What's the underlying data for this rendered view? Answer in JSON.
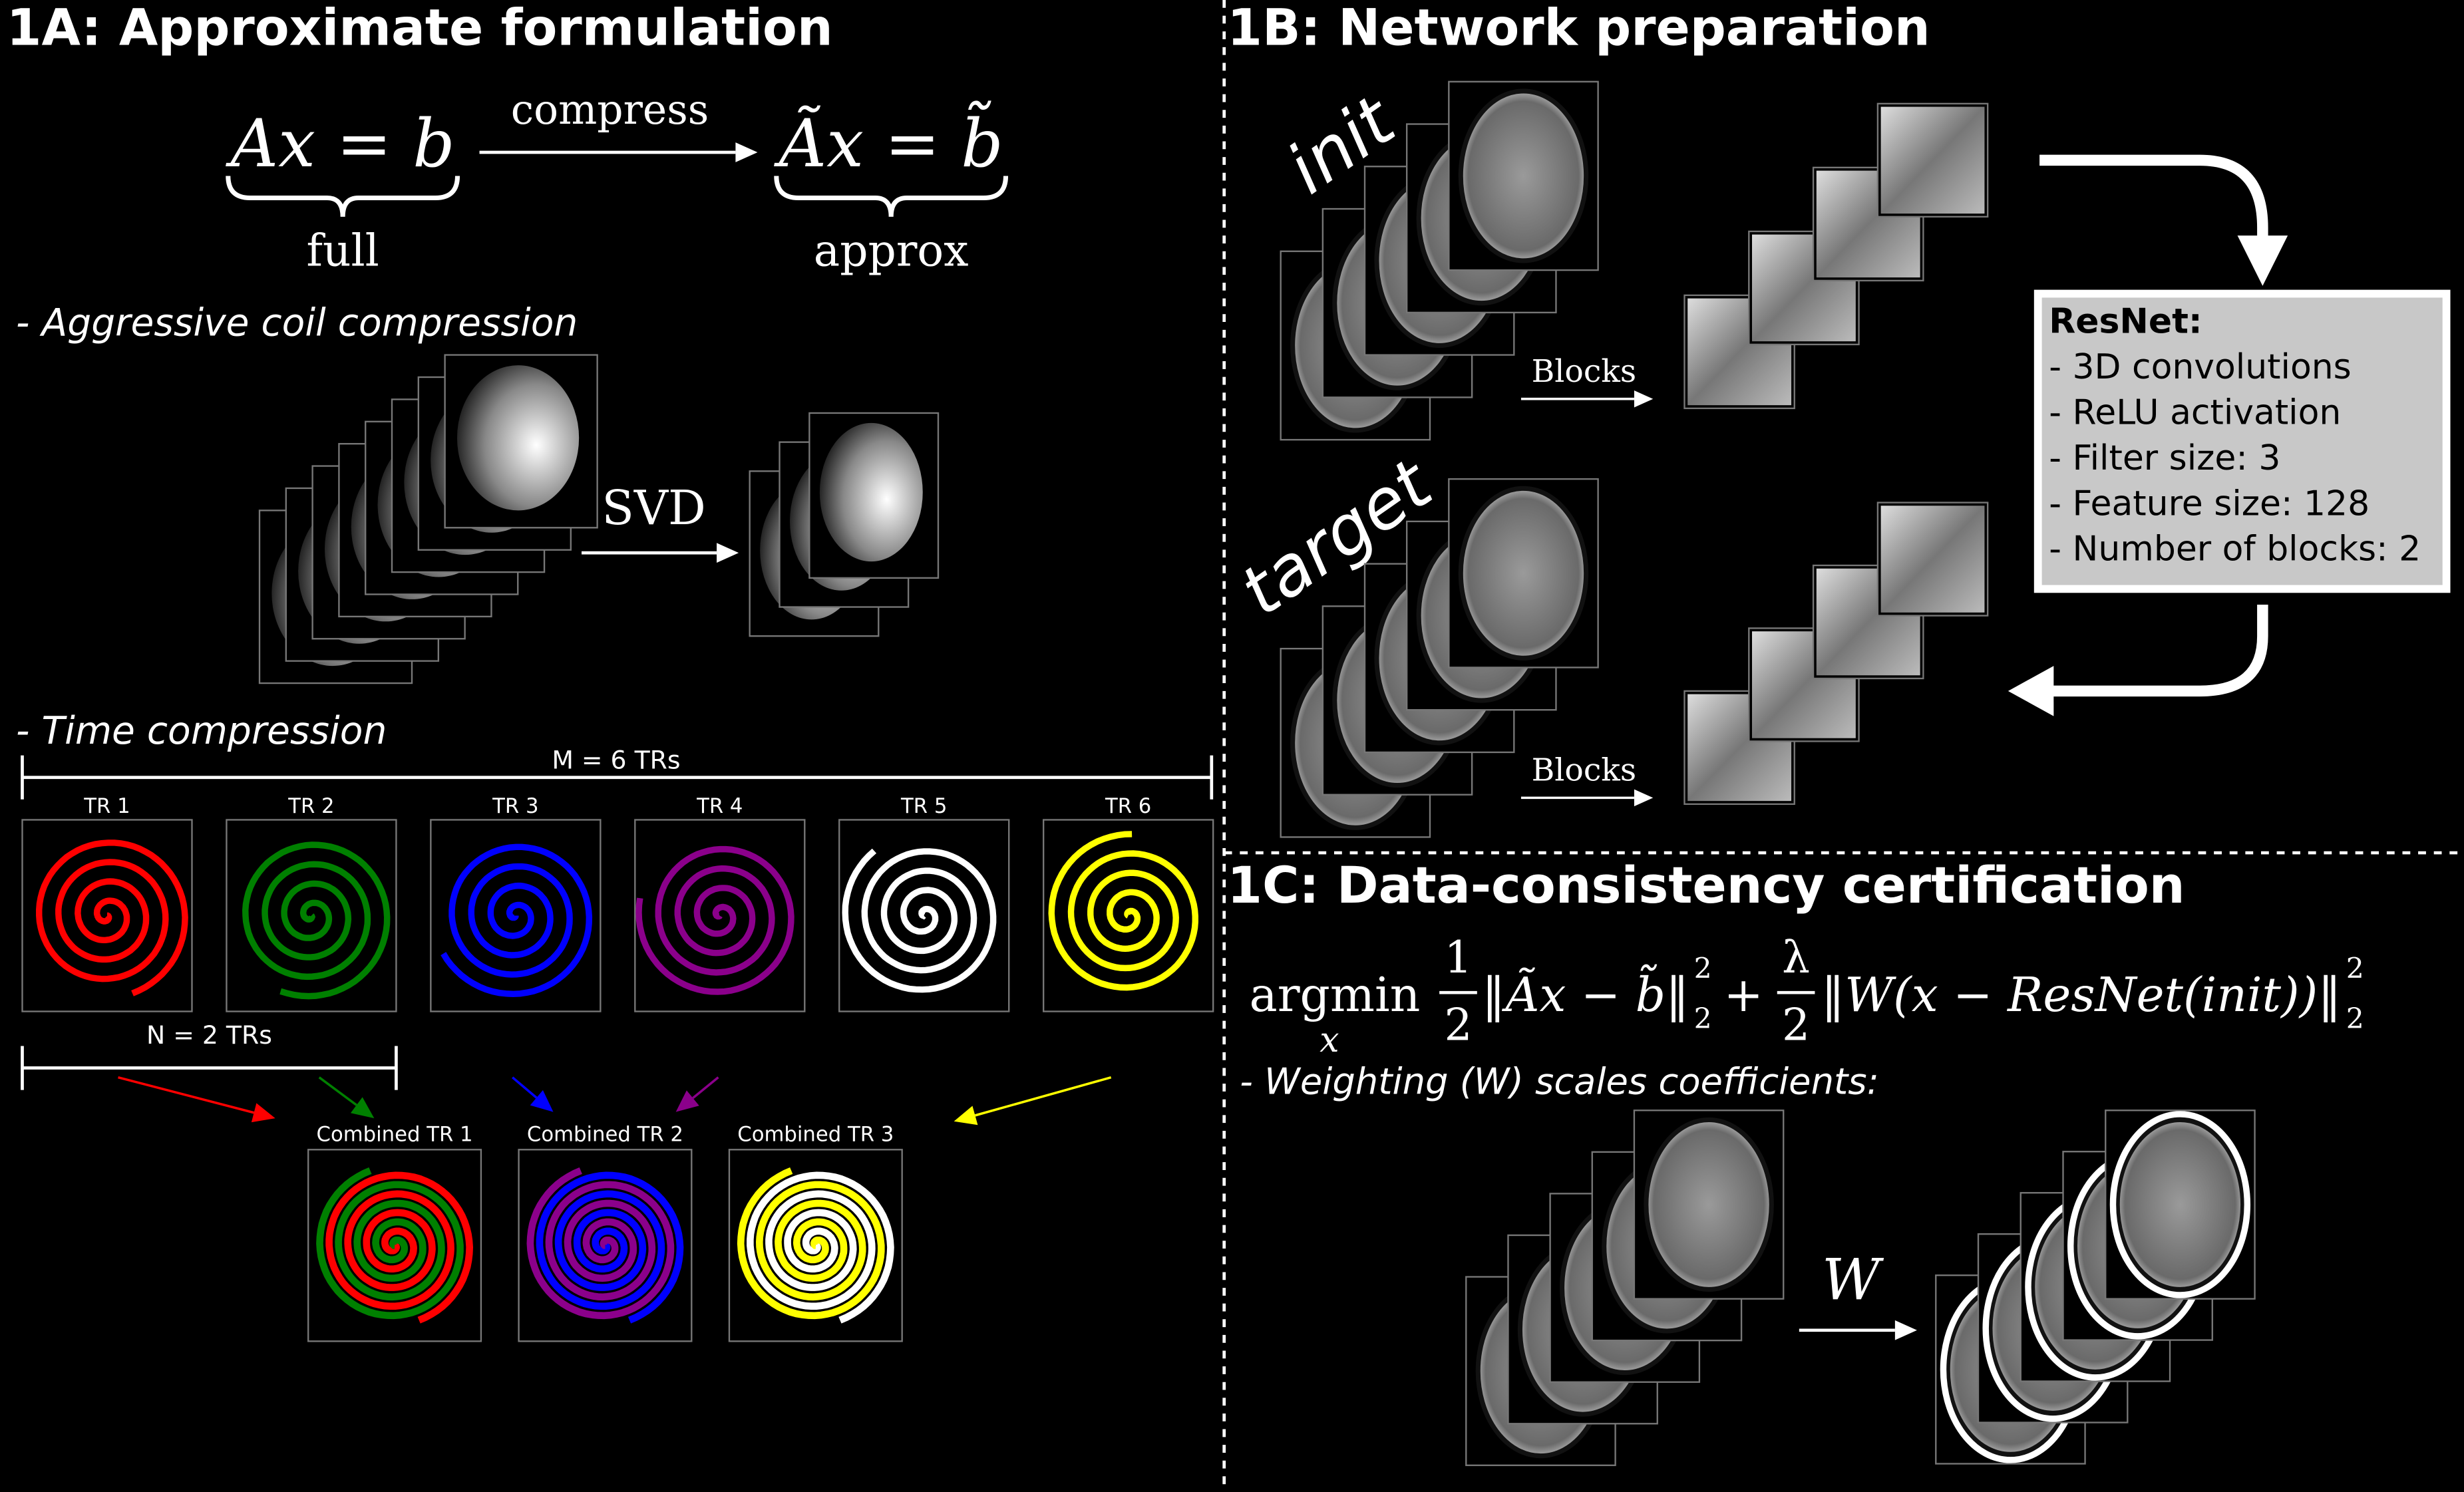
{
  "panel_1a": {
    "title": "1A: Approximate formulation",
    "equation_full": "Ax = b",
    "equation_arrow_label": "compress",
    "equation_approx": "Ãx = b̃",
    "brace_full": "full",
    "brace_approx": "approx",
    "coil_heading": "- Aggressive coil compression",
    "svd_label": "SVD",
    "time_heading": "- Time compression",
    "m_label": "M = 6 TRs",
    "trs": [
      {
        "label": "TR 1",
        "color": "#ff0000"
      },
      {
        "label": "TR 2",
        "color": "#008000"
      },
      {
        "label": "TR 3",
        "color": "#0000ff"
      },
      {
        "label": "TR 4",
        "color": "#8b008b"
      },
      {
        "label": "TR 5",
        "color": "#ffffff"
      },
      {
        "label": "TR 6",
        "color": "#ffff00"
      }
    ],
    "n_label": "N = 2 TRs",
    "combined": [
      "Combined TR 1",
      "Combined TR 2",
      "Combined TR 3"
    ]
  },
  "panel_1b": {
    "title": "1B: Network preparation",
    "init_label": "init",
    "target_label": "target",
    "blocks_labels": [
      "Blocks",
      "Blocks"
    ],
    "resnet": {
      "heading": "ResNet:",
      "items": [
        "- 3D convolutions",
        "- ReLU activation",
        "- Filter size: 3",
        "- Feature size: 128",
        "- Number of blocks: 2"
      ]
    }
  },
  "panel_1c": {
    "title": "1C: Data-consistency certification",
    "equation": {
      "operator": "argmin",
      "subscript": "x",
      "term1": {
        "numerator": "1",
        "denominator": "2",
        "norm": "‖Ãx − b̃‖",
        "sup": "2",
        "sub": "2"
      },
      "plus": "+",
      "term2": {
        "numerator": "λ",
        "denominator": "2",
        "norm": "‖W(x − ResNet(init))‖",
        "sup": "2",
        "sub": "2"
      }
    },
    "weighting_note": "- Weighting (W) scales coefficients:",
    "w_label": "W"
  }
}
